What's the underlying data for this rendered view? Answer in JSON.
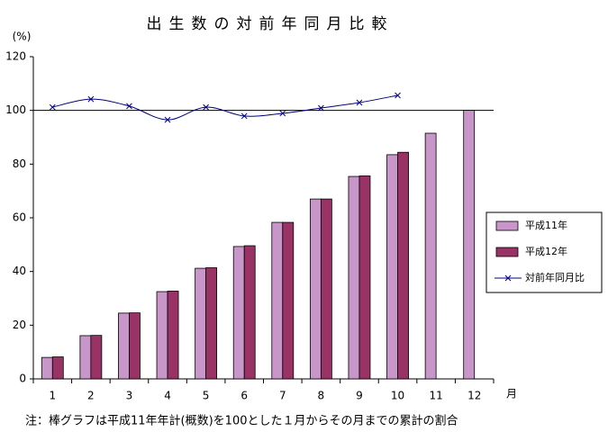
{
  "chart_data": {
    "type": "bar",
    "title": "出生数の対前年同月比較",
    "y_label": "(%)",
    "x_label": "月",
    "note": "注：棒グラフは平成11年年計(概数)を100とした１月からその月までの累計の割合",
    "categories": [
      "1",
      "2",
      "3",
      "4",
      "5",
      "6",
      "7",
      "8",
      "9",
      "10",
      "11",
      "12"
    ],
    "series": [
      {
        "name": "平成11年",
        "type": "bar",
        "color": "#c896c8",
        "values": [
          8.0,
          16.1,
          24.5,
          32.5,
          41.2,
          49.3,
          58.3,
          67.0,
          75.4,
          83.5,
          91.5,
          100
        ]
      },
      {
        "name": "平成12年",
        "type": "bar",
        "color": "#993366",
        "values": [
          8.2,
          16.2,
          24.6,
          32.7,
          41.4,
          49.6,
          58.3,
          67.0,
          75.6,
          84.4,
          null,
          null
        ]
      },
      {
        "name": "対前年同月比",
        "type": "line",
        "color": "#000080",
        "values": [
          101.2,
          104.2,
          101.6,
          96.5,
          101.2,
          97.9,
          98.9,
          100.9,
          102.9,
          105.6,
          null,
          null
        ]
      }
    ],
    "reference_line": 100,
    "ylim": [
      0,
      120
    ],
    "yticks": [
      0,
      20,
      40,
      60,
      80,
      100,
      120
    ],
    "grid": false,
    "legend": "right"
  }
}
